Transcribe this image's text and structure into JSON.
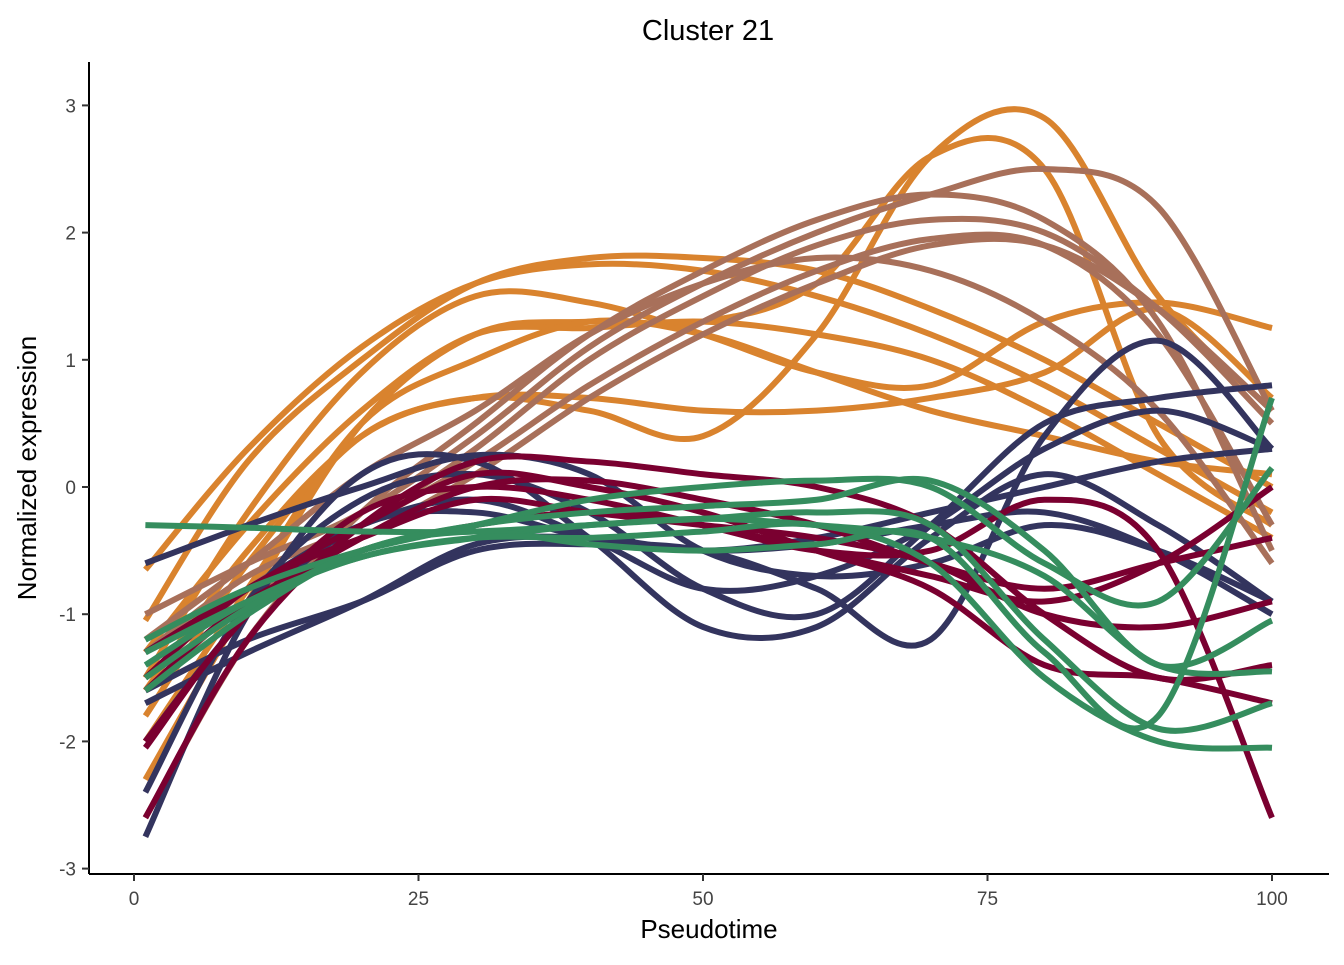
{
  "chart_data": {
    "type": "line",
    "title": "Cluster 21",
    "xlabel": "Pseudotime",
    "ylabel": "Normalized expression",
    "xlim": [
      -4,
      104
    ],
    "ylim": [
      -3.05,
      3.35
    ],
    "xticks": [
      "0",
      "25",
      "50",
      "75",
      "100"
    ],
    "xtick_values": [
      0,
      25,
      50,
      75,
      100
    ],
    "yticks": [
      "-3",
      "-2",
      "-1",
      "0",
      "1",
      "2",
      "3"
    ],
    "ytick_values": [
      -3,
      -2,
      -1,
      0,
      1,
      2,
      3
    ],
    "grid": false,
    "legend": "none",
    "x": [
      1,
      10,
      20,
      30,
      40,
      50,
      60,
      70,
      80,
      90,
      100
    ],
    "groups": [
      {
        "name": "orange",
        "color": "#D9832E",
        "series": [
          [
            -1.6,
            -0.5,
            0.4,
            0.7,
            0.6,
            0.4,
            1.2,
            2.6,
            2.9,
            1.5,
            0.6
          ],
          [
            -2.3,
            -0.9,
            0.5,
            1.2,
            1.3,
            1.3,
            1.6,
            2.6,
            2.5,
            0.4,
            -0.3
          ],
          [
            -1.05,
            0.2,
            1.0,
            1.6,
            1.8,
            1.8,
            1.7,
            1.4,
            1.0,
            0.5,
            0.0
          ],
          [
            -0.65,
            0.3,
            1.1,
            1.6,
            1.75,
            1.7,
            1.5,
            1.2,
            0.8,
            0.3,
            -0.2
          ],
          [
            -1.5,
            -0.2,
            0.9,
            1.5,
            1.45,
            1.2,
            0.9,
            0.8,
            1.3,
            1.45,
            1.25
          ],
          [
            -1.3,
            -0.3,
            0.6,
            1.2,
            1.25,
            1.3,
            1.2,
            1.0,
            0.6,
            0.1,
            -0.4
          ],
          [
            -1.8,
            -0.6,
            0.4,
            0.7,
            0.7,
            0.6,
            0.6,
            0.7,
            0.9,
            1.4,
            0.7
          ],
          [
            -2.0,
            -0.8,
            0.5,
            1.0,
            1.3,
            1.2,
            0.9,
            0.6,
            0.4,
            0.2,
            0.1
          ]
        ]
      },
      {
        "name": "brown",
        "color": "#A8705A",
        "series": [
          [
            -1.0,
            -0.6,
            -0.2,
            0.4,
            1.1,
            1.6,
            2.0,
            2.3,
            2.5,
            2.2,
            0.6
          ],
          [
            -2.6,
            -1.2,
            -0.2,
            0.5,
            1.2,
            1.7,
            2.1,
            2.3,
            2.1,
            1.3,
            -0.5
          ],
          [
            -1.5,
            -0.8,
            -0.3,
            0.3,
            1.0,
            1.5,
            1.9,
            2.1,
            2.0,
            1.4,
            0.5
          ],
          [
            -1.3,
            -0.7,
            -0.3,
            0.2,
            0.8,
            1.3,
            1.7,
            1.95,
            1.9,
            1.2,
            -0.3
          ],
          [
            -1.6,
            -0.9,
            -0.4,
            0.1,
            0.7,
            1.2,
            1.6,
            1.9,
            1.9,
            1.4,
            0.6
          ],
          [
            -1.2,
            -0.6,
            0.1,
            0.6,
            1.2,
            1.6,
            1.8,
            1.7,
            1.3,
            0.6,
            -0.6
          ]
        ]
      },
      {
        "name": "navy",
        "color": "#33345E",
        "series": [
          [
            -0.6,
            -0.3,
            0.0,
            0.25,
            0.1,
            -0.5,
            -0.7,
            -0.6,
            -0.3,
            -0.5,
            -0.9
          ],
          [
            -2.75,
            -1.0,
            0.1,
            0.2,
            -0.4,
            -1.1,
            -1.1,
            -0.4,
            0.1,
            -0.3,
            -0.9
          ],
          [
            -1.6,
            -1.2,
            -0.9,
            -0.5,
            -0.45,
            -0.5,
            -0.8,
            -1.2,
            0.4,
            1.15,
            0.3
          ],
          [
            -2.4,
            -0.9,
            -0.1,
            0.1,
            -0.2,
            -0.8,
            -1.0,
            -0.3,
            0.5,
            0.7,
            0.8
          ],
          [
            -1.3,
            -0.8,
            -0.3,
            -0.1,
            -0.4,
            -0.8,
            -0.7,
            -0.3,
            0.3,
            0.6,
            0.3
          ],
          [
            -2.0,
            -1.0,
            -0.3,
            -0.2,
            -0.4,
            -0.5,
            -0.4,
            -0.2,
            0.0,
            0.2,
            0.3
          ],
          [
            -1.7,
            -1.3,
            -0.9,
            -0.45,
            -0.4,
            -0.5,
            -0.45,
            -0.3,
            -0.2,
            -0.5,
            -1.0
          ]
        ]
      },
      {
        "name": "crimson",
        "color": "#7A0030",
        "series": [
          [
            -2.6,
            -1.2,
            -0.3,
            0.2,
            0.2,
            0.1,
            0.0,
            -0.3,
            -1.0,
            -1.5,
            -1.4
          ],
          [
            -2.0,
            -1.0,
            -0.2,
            0.0,
            -0.1,
            -0.3,
            -0.5,
            -0.5,
            -0.1,
            -0.5,
            -2.6
          ],
          [
            -1.3,
            -0.8,
            -0.3,
            0.1,
            0.0,
            -0.2,
            -0.5,
            -0.8,
            -1.4,
            -1.5,
            -1.7
          ],
          [
            -1.6,
            -0.9,
            -0.5,
            -0.3,
            -0.2,
            -0.3,
            -0.5,
            -0.7,
            -0.9,
            -0.6,
            0.0
          ],
          [
            -1.5,
            -0.8,
            -0.4,
            -0.1,
            -0.2,
            -0.3,
            -0.4,
            -0.6,
            -1.0,
            -1.1,
            -0.9
          ],
          [
            -2.05,
            -1.0,
            -0.4,
            0.0,
            0.05,
            -0.1,
            -0.3,
            -0.6,
            -0.8,
            -0.6,
            -0.4
          ]
        ]
      },
      {
        "name": "green",
        "color": "#358D5E",
        "series": [
          [
            -0.3,
            -0.32,
            -0.35,
            -0.35,
            -0.3,
            -0.25,
            -0.3,
            -0.4,
            -0.7,
            -1.4,
            -1.45
          ],
          [
            -1.2,
            -0.8,
            -0.5,
            -0.3,
            -0.1,
            0.0,
            0.05,
            0.0,
            -0.6,
            -0.9,
            0.15
          ],
          [
            -1.3,
            -0.9,
            -0.55,
            -0.4,
            -0.3,
            -0.25,
            -0.2,
            -0.3,
            -1.2,
            -1.9,
            -1.7
          ],
          [
            -1.6,
            -1.0,
            -0.5,
            -0.35,
            -0.45,
            -0.5,
            -0.45,
            -0.4,
            -1.3,
            -1.8,
            0.7
          ],
          [
            -1.4,
            -0.9,
            -0.55,
            -0.4,
            -0.4,
            -0.35,
            -0.3,
            -0.6,
            -1.5,
            -2.0,
            -2.05
          ],
          [
            -1.5,
            -0.95,
            -0.5,
            -0.3,
            -0.2,
            -0.15,
            -0.1,
            0.05,
            -0.5,
            -1.4,
            -1.05
          ]
        ]
      }
    ]
  }
}
